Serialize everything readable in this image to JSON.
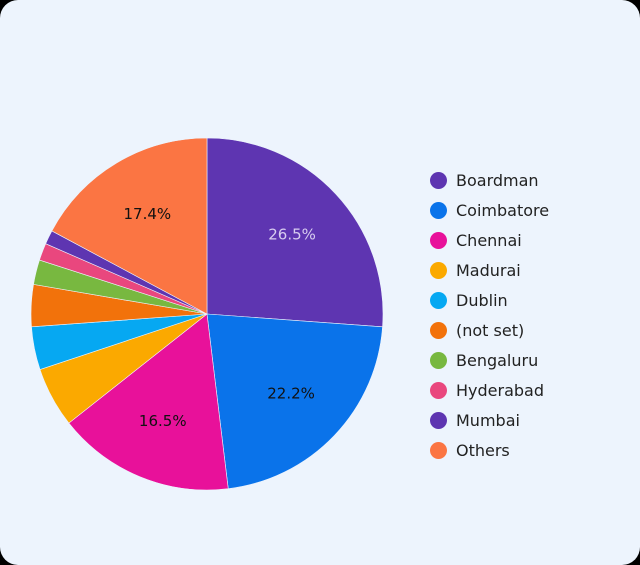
{
  "chart_data": {
    "type": "pie",
    "legend_position": "right",
    "slices": [
      {
        "label": "Boardman",
        "value": 26.5,
        "color": "#5e35b1",
        "value_label": "26.5%",
        "label_color": "#d8cdf0"
      },
      {
        "label": "Coimbatore",
        "value": 22.2,
        "color": "#0a73ea",
        "value_label": "22.2%",
        "label_color": "#111111"
      },
      {
        "label": "Chennai",
        "value": 16.5,
        "color": "#e8119a",
        "value_label": "16.5%",
        "label_color": "#111111"
      },
      {
        "label": "Madurai",
        "value": 5.6,
        "color": "#fba900",
        "value_label": "",
        "label_color": "#111111"
      },
      {
        "label": "Dublin",
        "value": 4.0,
        "color": "#06a8f2",
        "value_label": "",
        "label_color": "#111111"
      },
      {
        "label": "(not set)",
        "value": 3.9,
        "color": "#f2720b",
        "value_label": "",
        "label_color": "#111111"
      },
      {
        "label": "Bengaluru",
        "value": 2.3,
        "color": "#78b840",
        "value_label": "",
        "label_color": "#111111"
      },
      {
        "label": "Hyderabad",
        "value": 1.6,
        "color": "#e9477e",
        "value_label": "",
        "label_color": "#111111"
      },
      {
        "label": "Mumbai",
        "value": 1.3,
        "color": "#5e35b1",
        "value_label": "",
        "label_color": "#111111"
      },
      {
        "label": "Others",
        "value": 17.4,
        "color": "#fb7543",
        "value_label": "17.4%",
        "label_color": "#111111"
      }
    ]
  }
}
